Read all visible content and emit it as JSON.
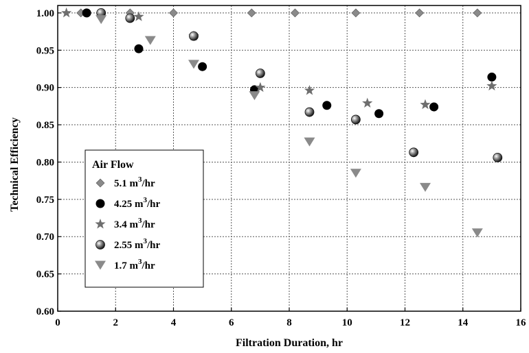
{
  "chart_data": {
    "type": "scatter",
    "title": "",
    "xlabel": "Filtration Duration, hr",
    "ylabel": "Technical Efficiency",
    "xlim": [
      0,
      16
    ],
    "ylim": [
      0.6,
      1.01
    ],
    "xticks": [
      "0",
      "2",
      "4",
      "6",
      "8",
      "10",
      "12",
      "14",
      "16"
    ],
    "yticks": [
      "0.60",
      "0.65",
      "0.70",
      "0.75",
      "0.80",
      "0.85",
      "0.90",
      "0.95",
      "1.00"
    ],
    "grid": true,
    "legend": {
      "title": "Air Flow",
      "placement": "bottom-left"
    },
    "series": [
      {
        "name": "5.1 m3/hr",
        "label_main": "5.1 m",
        "label_sup": "3",
        "label_tail": "/hr",
        "marker": "diamond",
        "color": "#8a8a8a",
        "points": [
          [
            0.8,
            1.0
          ],
          [
            1.5,
            1.0
          ],
          [
            2.5,
            1.0
          ],
          [
            4.0,
            1.0
          ],
          [
            6.7,
            1.0
          ],
          [
            8.2,
            1.0
          ],
          [
            10.3,
            1.0
          ],
          [
            12.5,
            1.0
          ],
          [
            14.5,
            1.0
          ]
        ]
      },
      {
        "name": "4.25 m3/hr",
        "label_main": "4.25 m",
        "label_sup": "3",
        "label_tail": "/hr",
        "marker": "circle",
        "color": "#000000",
        "points": [
          [
            1.0,
            1.0
          ],
          [
            2.8,
            0.952
          ],
          [
            5.0,
            0.928
          ],
          [
            6.8,
            0.897
          ],
          [
            9.3,
            0.876
          ],
          [
            11.1,
            0.865
          ],
          [
            13.0,
            0.874
          ],
          [
            15.0,
            0.914
          ]
        ]
      },
      {
        "name": "3.4 m3/hr",
        "label_main": "3.4 m",
        "label_sup": "3",
        "label_tail": "/hr",
        "marker": "star",
        "color": "#6e6e6e",
        "points": [
          [
            0.3,
            1.0
          ],
          [
            2.8,
            0.995
          ],
          [
            4.7,
            0.969
          ],
          [
            7.0,
            0.9
          ],
          [
            8.7,
            0.896
          ],
          [
            10.7,
            0.879
          ],
          [
            12.7,
            0.877
          ],
          [
            15.0,
            0.902
          ]
        ]
      },
      {
        "name": "2.55 m3/hr",
        "label_main": "2.55 m",
        "label_sup": "3",
        "label_tail": "/hr",
        "marker": "sphere",
        "color": "#3a3a3a",
        "points": [
          [
            1.5,
            1.0
          ],
          [
            2.5,
            0.993
          ],
          [
            4.7,
            0.969
          ],
          [
            7.0,
            0.919
          ],
          [
            8.7,
            0.867
          ],
          [
            10.3,
            0.857
          ],
          [
            12.3,
            0.813
          ],
          [
            15.2,
            0.806
          ]
        ]
      },
      {
        "name": "1.7 m3/hr",
        "label_main": "1.7 m",
        "label_sup": "3",
        "label_tail": "/hr",
        "marker": "triangle-down",
        "color": "#8a8a8a",
        "points": [
          [
            1.5,
            0.991
          ],
          [
            3.2,
            0.963
          ],
          [
            4.7,
            0.931
          ],
          [
            6.8,
            0.889
          ],
          [
            8.7,
            0.827
          ],
          [
            10.3,
            0.785
          ],
          [
            12.7,
            0.766
          ],
          [
            14.5,
            0.705
          ]
        ]
      }
    ]
  }
}
